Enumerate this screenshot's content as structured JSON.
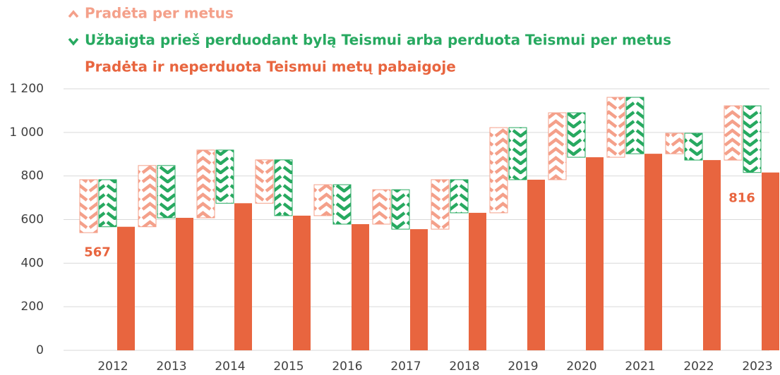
{
  "chart_data": {
    "type": "waterfall",
    "categories": [
      "2012",
      "2013",
      "2014",
      "2015",
      "2016",
      "2017",
      "2018",
      "2019",
      "2020",
      "2021",
      "2022",
      "2023"
    ],
    "series": [
      {
        "name": "Pradėta per metus",
        "color": "#f4a08a",
        "values": [
          243,
          281,
          311,
          199,
          142,
          158,
          227,
          391,
          307,
          275,
          94,
          249
        ]
      },
      {
        "name": "Užbaigta prieš perduodant bylą Teismui arba perduota Teismui per metus",
        "color": "#27a960",
        "values": [
          216,
          240,
          244,
          256,
          181,
          181,
          152,
          239,
          204,
          259,
          123,
          306
        ]
      },
      {
        "name": "Pradėta ir neperduota Teismui metų pabaigoje",
        "color": "#e8653f",
        "values": [
          567,
          608,
          675,
          618,
          579,
          556,
          631,
          783,
          886,
          902,
          873,
          816
        ],
        "value_labels": [
          "567",
          null,
          null,
          null,
          null,
          null,
          null,
          null,
          null,
          null,
          null,
          "816"
        ]
      }
    ],
    "ylim": [
      0,
      1200
    ],
    "yticks": [
      0,
      200,
      400,
      600,
      800,
      {
        "value": 1000,
        "label": "1 000"
      },
      {
        "value": 1200,
        "label": "1 200"
      }
    ],
    "grid": true,
    "legend": "top-left"
  }
}
